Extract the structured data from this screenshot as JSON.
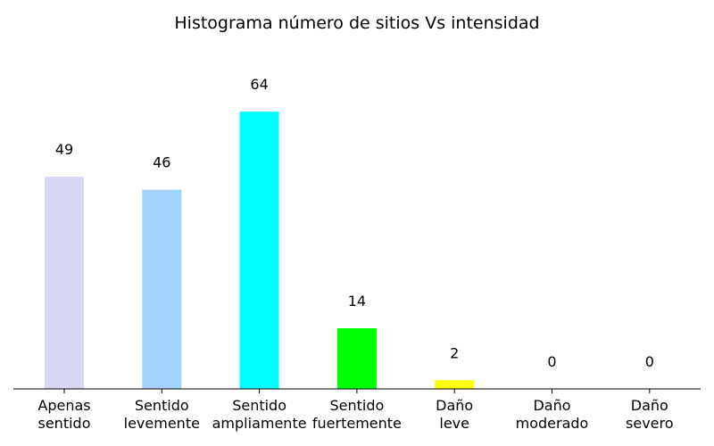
{
  "chart_data": {
    "type": "bar",
    "title": "Histograma número de sitios Vs intensidad",
    "xlabel": "",
    "ylabel": "",
    "categories": [
      [
        "Apenas",
        "sentido"
      ],
      [
        "Sentido",
        "levemente"
      ],
      [
        "Sentido",
        "ampliamente"
      ],
      [
        "Sentido",
        "fuertemente"
      ],
      [
        "Daño",
        "leve"
      ],
      [
        "Daño",
        "moderado"
      ],
      [
        "Daño",
        "severo"
      ]
    ],
    "values": [
      49,
      46,
      64,
      14,
      2,
      0,
      0
    ],
    "colors": [
      "#d8d8f6",
      "#a3d3ff",
      "#00ffff",
      "#00ff00",
      "#ffff00",
      "#ff9900",
      "#ff0000"
    ],
    "ylim": [
      0,
      70
    ],
    "grid": false,
    "legend": "none",
    "show_y_axis": false
  }
}
